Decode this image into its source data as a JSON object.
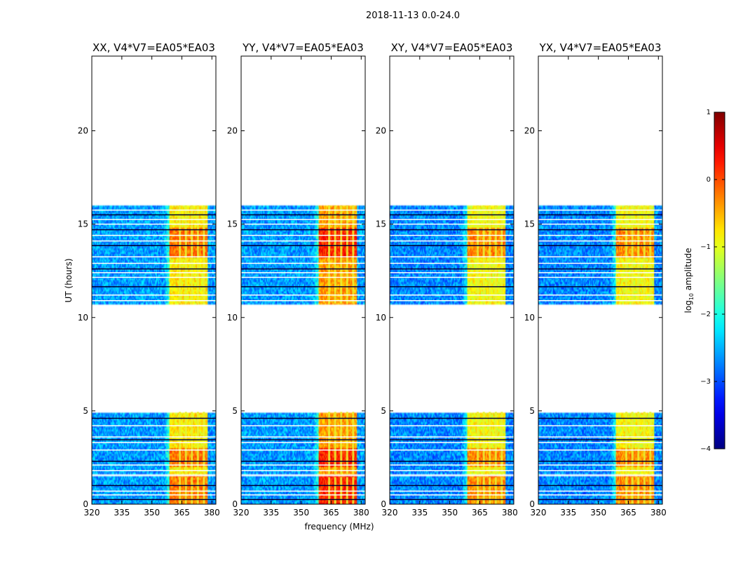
{
  "chart_data": {
    "type": "heatmap",
    "title": "2018-11-13 0.0-24.0",
    "xlabel": "frequency (MHz)",
    "ylabel": "UT (hours)",
    "xlim": [
      320,
      382
    ],
    "ylim": [
      0,
      24
    ],
    "x_ticks": [
      320,
      335,
      350,
      365,
      380
    ],
    "y_ticks": [
      0,
      5,
      10,
      15,
      20
    ],
    "colorbar": {
      "label": "log10 amplitude",
      "label_main": "log",
      "label_sub": "10",
      "label_rest": " amplitude",
      "range": [
        -4,
        1
      ],
      "ticks": [
        -4,
        -3,
        -2,
        -1,
        0,
        1
      ],
      "tick_labels": [
        "−4",
        "−3",
        "−2",
        "−1",
        "0",
        "1"
      ],
      "colormap": "jet"
    },
    "data_blocks_hours": [
      [
        0,
        1.45
      ],
      [
        1.6,
        4.95
      ],
      [
        10.75,
        16.0
      ]
    ],
    "gap_lines_hours": [
      0.25,
      0.5,
      0.7,
      1.0,
      1.8,
      2.1,
      2.3,
      2.9,
      3.3,
      3.45,
      3.6,
      4.2,
      4.6,
      10.9,
      11.2,
      11.65,
      12.15,
      12.4,
      12.6,
      12.9,
      13.25,
      13.85,
      14.1,
      14.4,
      14.7,
      15.0,
      15.25,
      15.5,
      15.75
    ],
    "high_band_mhz": [
      359,
      378
    ],
    "high_band_stripes_mhz": [
      364,
      367,
      370,
      373,
      376
    ],
    "panels": [
      {
        "title": "XX, V4*V7=EA05*EA03",
        "base_level": -2.6,
        "band_level": -0.8
      },
      {
        "title": "YY, V4*V7=EA05*EA03",
        "base_level": -2.6,
        "band_level": -0.4
      },
      {
        "title": "XY, V4*V7=EA05*EA03",
        "base_level": -2.7,
        "band_level": -0.9
      },
      {
        "title": "YX, V4*V7=EA05*EA03",
        "base_level": -2.7,
        "band_level": -0.9
      }
    ]
  }
}
